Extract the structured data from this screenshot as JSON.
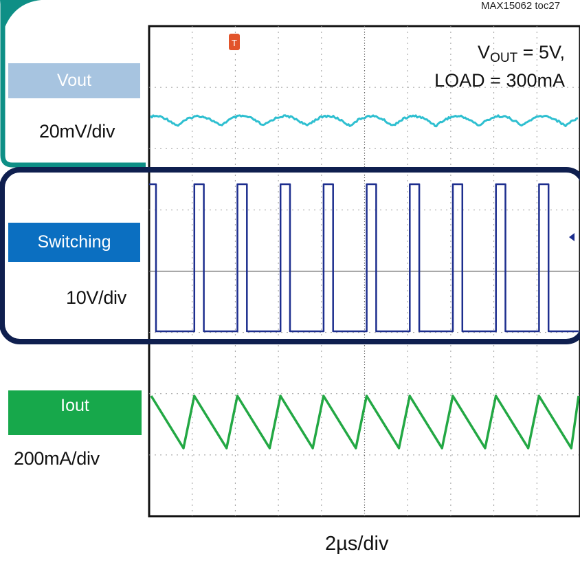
{
  "figure_id": "MAX15062 toc27",
  "channels": [
    {
      "name": "Vout",
      "scale": "20mV/div",
      "color": "#a7c4e0"
    },
    {
      "name": "Switching",
      "scale": "10V/div",
      "color": "#0b6fc1"
    },
    {
      "name": "Iout",
      "scale": "200mA/div",
      "color": "#17a84b"
    }
  ],
  "annotation": {
    "vout_prefix": "V",
    "vout_sub": "OUT",
    "vout_value": " = 5V,",
    "load": "LOAD = 300mA"
  },
  "time_scale": "2µs/div",
  "colors": {
    "vout_trace": "#2ebfd0",
    "sw_trace": "#1d2e8e",
    "iout_trace": "#23a844",
    "teal_frame": "#0e8f86",
    "navy_frame": "#0f1f4f"
  },
  "chart_data": {
    "type": "line",
    "x_divisions": 10,
    "y_divisions": 8,
    "series": [
      {
        "name": "Vout",
        "description": "ripple",
        "period_div": 1.0
      },
      {
        "name": "Switching",
        "description": "square wave",
        "period_div": 1.0,
        "duty": 0.22
      },
      {
        "name": "Iout",
        "description": "sawtooth",
        "period_div": 1.0
      }
    ]
  }
}
